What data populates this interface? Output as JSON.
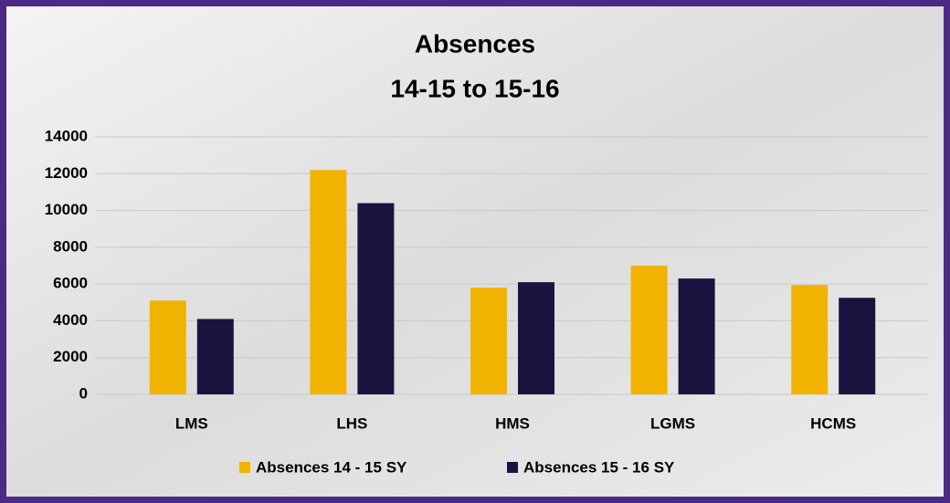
{
  "chart_data": {
    "type": "bar",
    "title": "Absences",
    "subtitle": "14-15 to 15-16",
    "categories": [
      "LMS",
      "LHS",
      "HMS",
      "LGMS",
      "HCMS"
    ],
    "series": [
      {
        "name": "Absences 14 - 15 SY",
        "color": "#f2b300",
        "values": [
          5100,
          12200,
          5800,
          7000,
          5950
        ]
      },
      {
        "name": "Absences 15 - 16 SY",
        "color": "#1c1240",
        "values": [
          4100,
          10400,
          6100,
          6300,
          5250
        ]
      }
    ],
    "ylim": [
      0,
      14000
    ],
    "yticks": [
      0,
      2000,
      4000,
      6000,
      8000,
      10000,
      12000,
      14000
    ],
    "grid": true,
    "legend": "bottom"
  }
}
